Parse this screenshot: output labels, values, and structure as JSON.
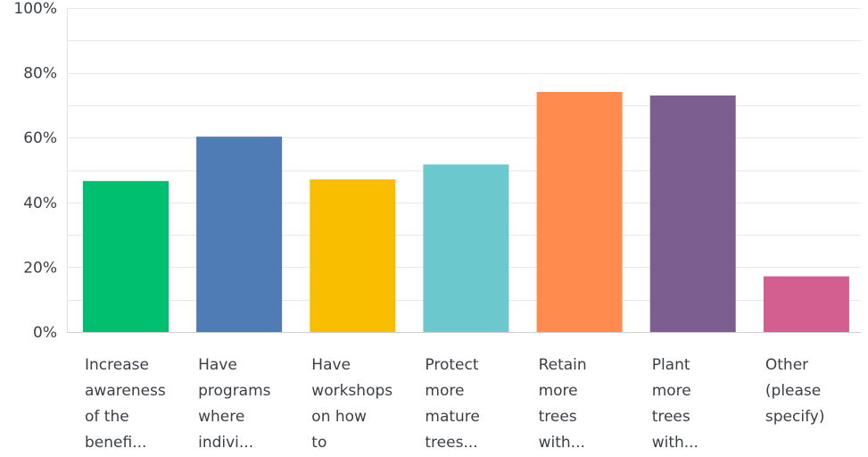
{
  "chart_data": {
    "type": "bar",
    "categories": [
      "Increase\nawareness\nof the\nbenefi...",
      "Have\nprograms\nwhere\nindivi...",
      "Have\nworkshops\non how\nto",
      "Protect\nmore\nmature\ntrees...",
      "Retain\nmore\ntrees\nwith...",
      "Plant\nmore\ntrees\nwith...",
      "Other\n(please\nspecify)"
    ],
    "values": [
      46.6,
      60.3,
      47.1,
      51.7,
      74.1,
      73.0,
      17.2
    ],
    "colors": [
      "#00bf6f",
      "#507cb6",
      "#f9be00",
      "#6bc8cd",
      "#ff8b4f",
      "#7d5e90",
      "#d25f90"
    ],
    "y_ticks": [
      "0%",
      "20%",
      "40%",
      "60%",
      "80%",
      "100%"
    ],
    "ylim": [
      0,
      100
    ],
    "grid": true,
    "grid_color": "#e8e8e8",
    "text_color": "#3b3f45"
  }
}
